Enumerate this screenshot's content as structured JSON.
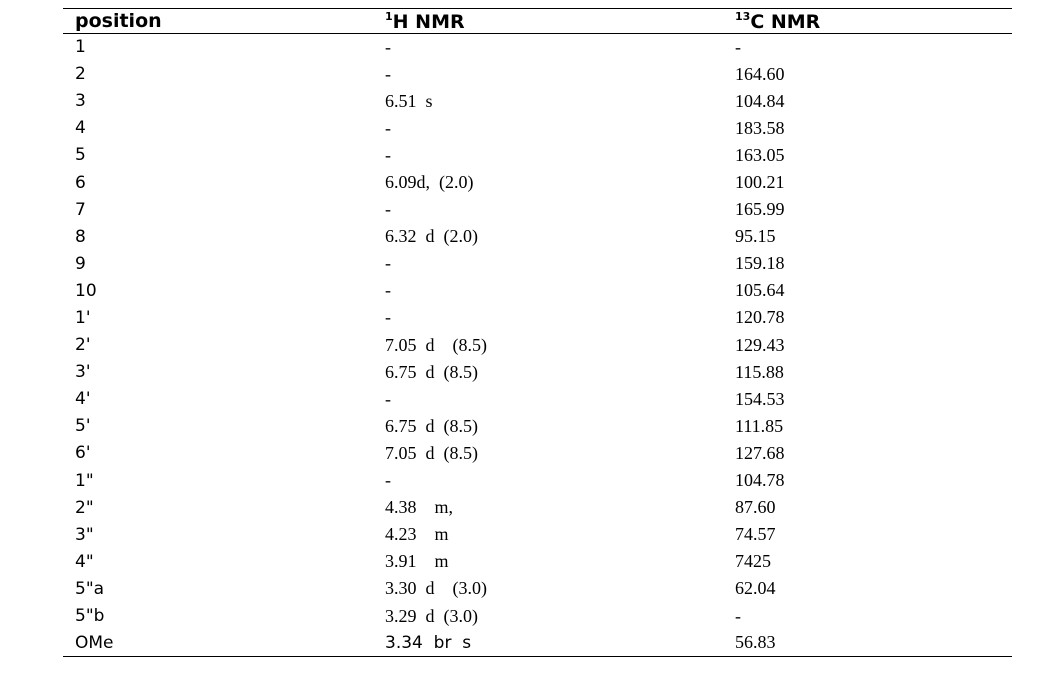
{
  "table": {
    "header": [
      {
        "text": "position"
      },
      {
        "sup": "1",
        "text": "H  NMR"
      },
      {
        "sup": "13",
        "text": "C  NMR"
      }
    ],
    "rows": [
      [
        "1",
        "-",
        "-"
      ],
      [
        "2",
        "-",
        "164.60"
      ],
      [
        "3",
        "6.51  s",
        "104.84"
      ],
      [
        "4",
        "-",
        "183.58"
      ],
      [
        "5",
        "-",
        "163.05"
      ],
      [
        "6",
        "6.09d,  (2.0)",
        "100.21"
      ],
      [
        "7",
        "-",
        "165.99"
      ],
      [
        "8",
        "6.32  d  (2.0)",
        "95.15"
      ],
      [
        "9",
        "-",
        "159.18"
      ],
      [
        "10",
        "-",
        "105.64"
      ],
      [
        "1'",
        "-",
        "120.78"
      ],
      [
        "2'",
        "7.05  d    (8.5)",
        "129.43"
      ],
      [
        "3'",
        "6.75  d  (8.5)",
        "115.88"
      ],
      [
        "4'",
        "-",
        "154.53"
      ],
      [
        "5'",
        "6.75  d  (8.5)",
        "111.85"
      ],
      [
        "6'",
        "7.05  d  (8.5)",
        "127.68"
      ],
      [
        "1\"",
        "-",
        "104.78"
      ],
      [
        "2\"",
        "4.38    m,",
        "87.60"
      ],
      [
        "3\"",
        "4.23    m",
        "74.57"
      ],
      [
        "4\"",
        "3.91    m",
        "7425"
      ],
      [
        "5\"a",
        "3.30  d    (3.0)",
        "62.04"
      ],
      [
        "5\"b",
        "3.29  d  (3.0)",
        "-"
      ],
      [
        "OMe",
        "3.34  br  s",
        "56.83"
      ]
    ]
  }
}
